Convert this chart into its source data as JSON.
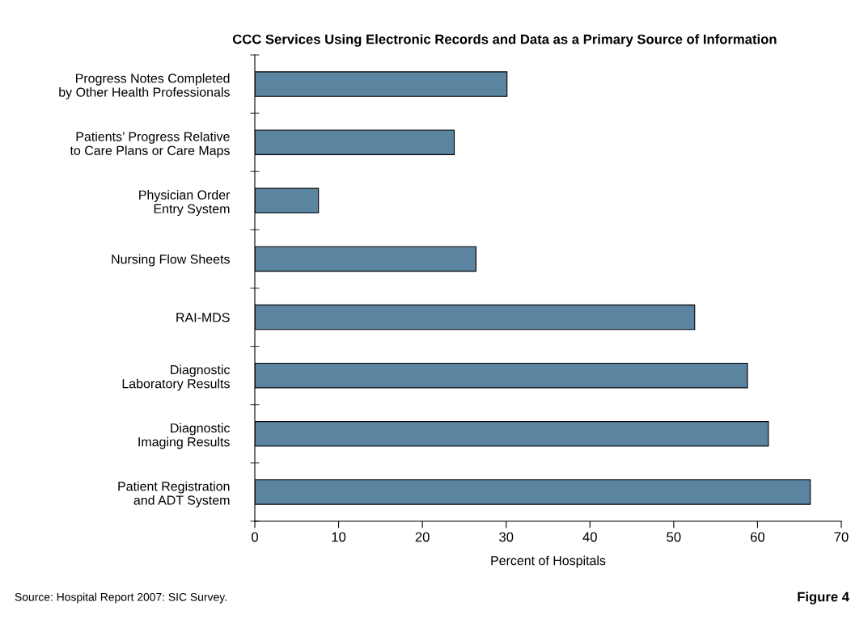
{
  "chart_data": {
    "type": "bar",
    "orientation": "horizontal",
    "title": "CCC Services Using Electronic Records and Data as a Primary Source of Information",
    "xlabel": "Percent of Hospitals",
    "categories": [
      "Progress Notes Completed\nby Other Health Professionals",
      "Patients’ Progress Relative\nto Care Plans or Care Maps",
      "Physician Order\nEntry System",
      "Nursing Flow Sheets",
      "RAI-MDS",
      "Diagnostic\nLaboratory Results",
      "Diagnostic\nImaging Results",
      "Patient Registration\nand ADT System"
    ],
    "values": [
      30.1,
      23.8,
      7.6,
      26.4,
      52.5,
      58.8,
      61.3,
      66.3
    ],
    "color": "#5b84a0",
    "xlim": [
      0,
      70
    ],
    "xticks": [
      0,
      10,
      20,
      30,
      40,
      50,
      60,
      70
    ],
    "grid": false,
    "legend": false,
    "annotations": [
      "Source: Hospital Report 2007: SIC Survey.",
      "Figure 4"
    ]
  }
}
